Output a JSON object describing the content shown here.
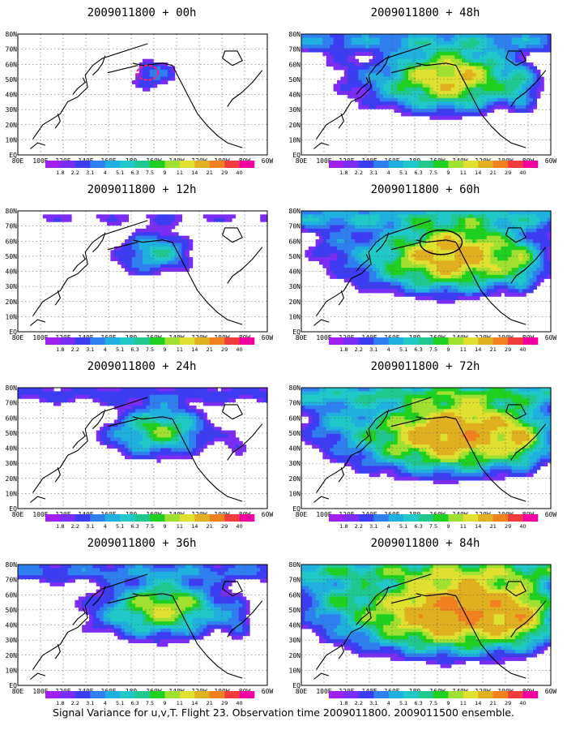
{
  "caption": "Signal Variance for u,v,T. Flight 23. Observation time 2009011800. 2009011500 ensemble.",
  "lat_tick_labels": [
    "80N",
    "70N",
    "60N",
    "50N",
    "40N",
    "30N",
    "20N",
    "10N",
    "EQ"
  ],
  "lon_tick_labels": [
    "80E",
    "100E",
    "120E",
    "140E",
    "160E",
    "180",
    "160W",
    "140W",
    "120W",
    "100W",
    "80W",
    "60W"
  ],
  "colorbar": {
    "levels": [
      "1.8",
      "2.2",
      "3.1",
      "4",
      "5.1",
      "6.3",
      "7.5",
      "9",
      "11",
      "14",
      "21",
      "29",
      "40"
    ],
    "colors": [
      "#a020f0",
      "#7b2cf5",
      "#3c3cf2",
      "#2f7ff0",
      "#20b0e0",
      "#20c8c8",
      "#20c890",
      "#20d020",
      "#a0e030",
      "#e0e030",
      "#e0b020",
      "#f08020",
      "#f03c3c",
      "#f000a0"
    ]
  },
  "chart_data": [
    {
      "type": "contour-map",
      "title": "2009011800 + 00h",
      "lead_hours": 0,
      "xrange": [
        "80E",
        "60W"
      ],
      "yrange": [
        "EQ",
        "80N"
      ],
      "highlight_circle": true,
      "highlight_color": "#ff2070"
    },
    {
      "type": "contour-map",
      "title": "2009011800 + 12h",
      "lead_hours": 12,
      "xrange": [
        "80E",
        "60W"
      ],
      "yrange": [
        "EQ",
        "80N"
      ]
    },
    {
      "type": "contour-map",
      "title": "2009011800 + 24h",
      "lead_hours": 24,
      "xrange": [
        "80E",
        "60W"
      ],
      "yrange": [
        "EQ",
        "80N"
      ]
    },
    {
      "type": "contour-map",
      "title": "2009011800 + 36h",
      "lead_hours": 36,
      "xrange": [
        "80E",
        "60W"
      ],
      "yrange": [
        "EQ",
        "80N"
      ]
    },
    {
      "type": "contour-map",
      "title": "2009011800 + 48h",
      "lead_hours": 48,
      "xrange": [
        "80E",
        "60W"
      ],
      "yrange": [
        "EQ",
        "80N"
      ]
    },
    {
      "type": "contour-map",
      "title": "2009011800 + 60h",
      "lead_hours": 60,
      "xrange": [
        "80E",
        "60W"
      ],
      "yrange": [
        "EQ",
        "80N"
      ],
      "highlight_circle": true,
      "highlight_color": "#000000"
    },
    {
      "type": "contour-map",
      "title": "2009011800 + 72h",
      "lead_hours": 72,
      "xrange": [
        "80E",
        "60W"
      ],
      "yrange": [
        "EQ",
        "80N"
      ]
    },
    {
      "type": "contour-map",
      "title": "2009011800 + 84h",
      "lead_hours": 84,
      "xrange": [
        "80E",
        "60W"
      ],
      "yrange": [
        "EQ",
        "80N"
      ]
    }
  ]
}
